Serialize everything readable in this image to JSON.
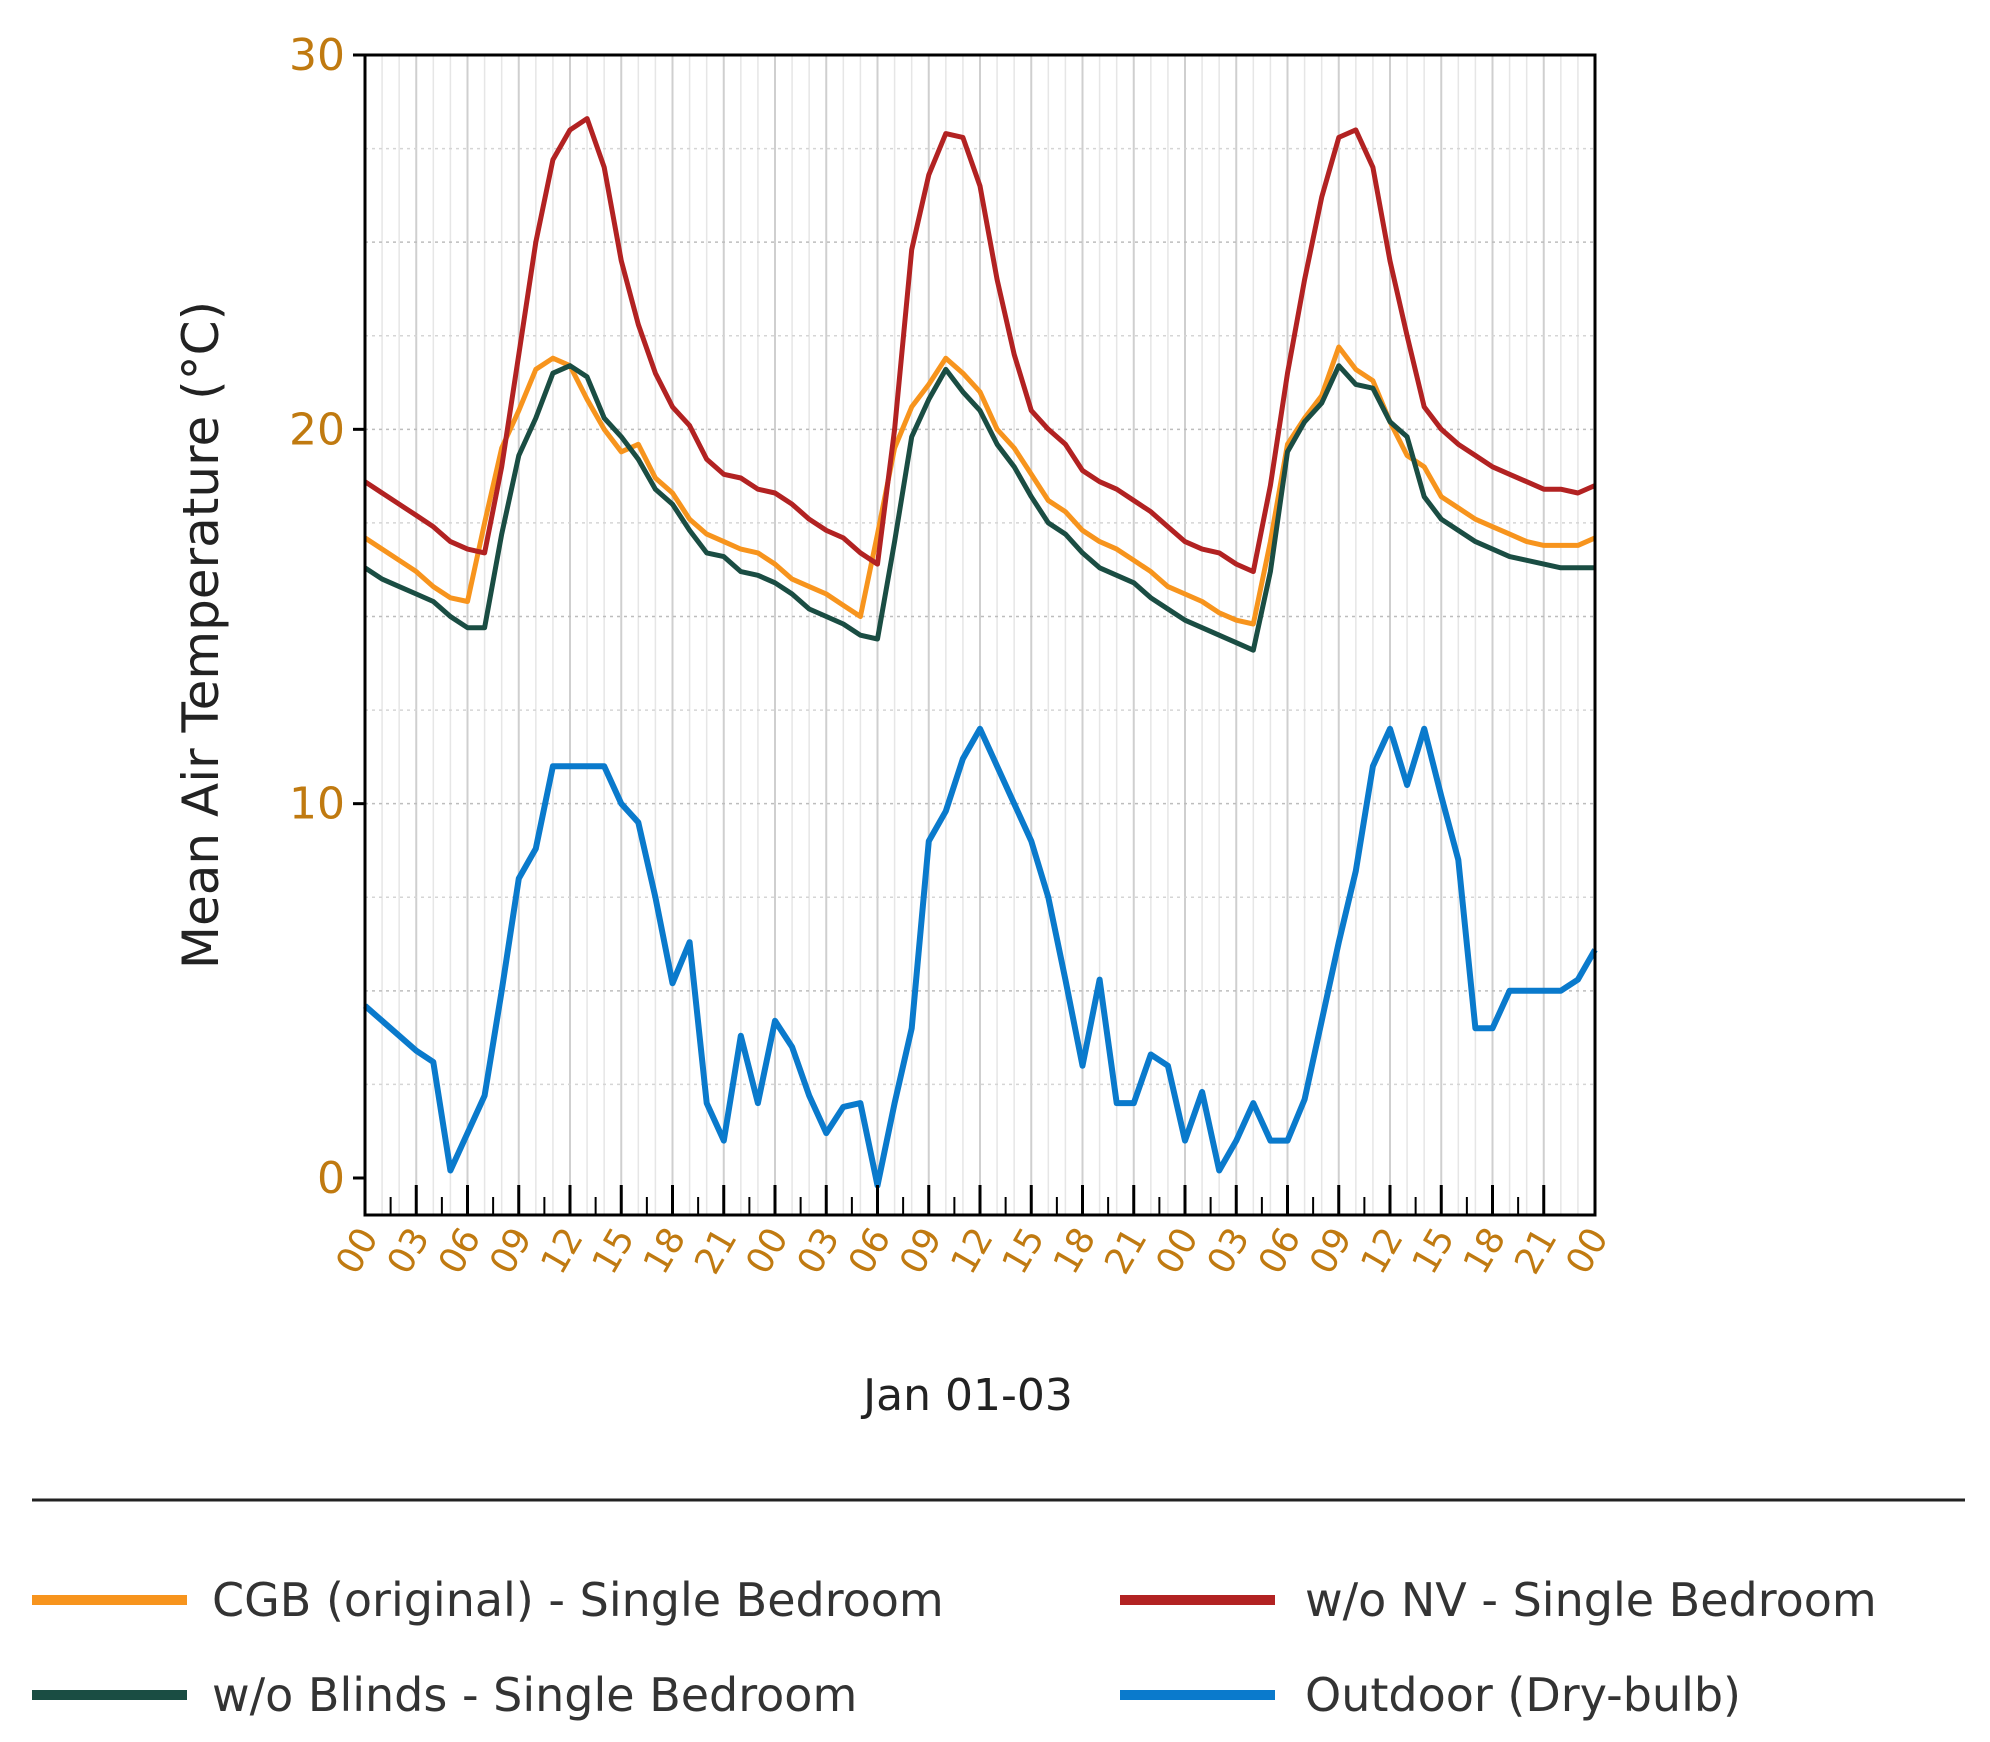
{
  "chart_data": {
    "type": "line",
    "xlabel": "Jan 01-03",
    "ylabel": "Mean Air Temperature (°C)",
    "ylim": [
      0,
      30
    ],
    "yticks": [
      "0",
      "10",
      "20",
      "30"
    ],
    "xticks": [
      "00",
      "03",
      "06",
      "09",
      "12",
      "15",
      "18",
      "21",
      "00",
      "03",
      "06",
      "09",
      "12",
      "15",
      "18",
      "21",
      "00",
      "03",
      "06",
      "09",
      "12",
      "15",
      "18",
      "21",
      "00"
    ],
    "grid": true,
    "legend_position": "bottom",
    "x_hours": [
      0,
      1,
      2,
      3,
      4,
      5,
      6,
      7,
      8,
      9,
      10,
      11,
      12,
      13,
      14,
      15,
      16,
      17,
      18,
      19,
      20,
      21,
      22,
      23,
      24,
      25,
      26,
      27,
      28,
      29,
      30,
      31,
      32,
      33,
      34,
      35,
      36,
      37,
      38,
      39,
      40,
      41,
      42,
      43,
      44,
      45,
      46,
      47,
      48,
      49,
      50,
      51,
      52,
      53,
      54,
      55,
      56,
      57,
      58,
      59,
      60,
      61,
      62,
      63,
      64,
      65,
      66,
      67,
      68,
      69,
      70,
      71,
      72
    ],
    "series": [
      {
        "name": "CGB (original) - Single Bedroom",
        "color": "#f7941d",
        "values": [
          17.1,
          16.8,
          16.5,
          16.2,
          15.8,
          15.5,
          15.4,
          17.5,
          19.5,
          20.5,
          21.6,
          21.9,
          21.7,
          20.8,
          20.0,
          19.4,
          19.6,
          18.7,
          18.3,
          17.6,
          17.2,
          17.0,
          16.8,
          16.7,
          16.4,
          16.0,
          15.8,
          15.6,
          15.3,
          15.0,
          17.2,
          19.5,
          20.6,
          21.2,
          21.9,
          21.5,
          21.0,
          20.0,
          19.5,
          18.8,
          18.1,
          17.8,
          17.3,
          17.0,
          16.8,
          16.5,
          16.2,
          15.8,
          15.6,
          15.4,
          15.1,
          14.9,
          14.8,
          17.0,
          19.6,
          20.3,
          20.9,
          22.2,
          21.6,
          21.3,
          20.2,
          19.3,
          19.0,
          18.2,
          17.9,
          17.6,
          17.4,
          17.2,
          17.0,
          16.9,
          16.9,
          16.9,
          17.1
        ],
        "lw": 5
      },
      {
        "name": "w/o NV - Single Bedroom",
        "color": "#b22222",
        "values": [
          18.6,
          18.3,
          18.0,
          17.7,
          17.4,
          17.0,
          16.8,
          16.7,
          19.0,
          22.0,
          25.0,
          27.2,
          28.0,
          28.3,
          27.0,
          24.5,
          22.8,
          21.5,
          20.6,
          20.1,
          19.2,
          18.8,
          18.7,
          18.4,
          18.3,
          18.0,
          17.6,
          17.3,
          17.1,
          16.7,
          16.4,
          20.0,
          24.8,
          26.8,
          27.9,
          27.8,
          26.5,
          24.0,
          22.0,
          20.5,
          20.0,
          19.6,
          18.9,
          18.6,
          18.4,
          18.1,
          17.8,
          17.4,
          17.0,
          16.8,
          16.7,
          16.4,
          16.2,
          18.5,
          21.5,
          24.0,
          26.2,
          27.8,
          28.0,
          27.0,
          24.5,
          22.5,
          20.6,
          20.0,
          19.6,
          19.3,
          19.0,
          18.8,
          18.6,
          18.4,
          18.4,
          18.3,
          18.5
        ],
        "lw": 5
      },
      {
        "name": "w/o Blinds - Single Bedroom",
        "color": "#1a4d43",
        "values": [
          16.3,
          16.0,
          15.8,
          15.6,
          15.4,
          15.0,
          14.7,
          14.7,
          17.2,
          19.3,
          20.3,
          21.5,
          21.7,
          21.4,
          20.3,
          19.8,
          19.2,
          18.4,
          18.0,
          17.3,
          16.7,
          16.6,
          16.2,
          16.1,
          15.9,
          15.6,
          15.2,
          15.0,
          14.8,
          14.5,
          14.4,
          17.0,
          19.8,
          20.8,
          21.6,
          21.0,
          20.5,
          19.6,
          19.0,
          18.2,
          17.5,
          17.2,
          16.7,
          16.3,
          16.1,
          15.9,
          15.5,
          15.2,
          14.9,
          14.7,
          14.5,
          14.3,
          14.1,
          16.2,
          19.4,
          20.2,
          20.7,
          21.7,
          21.2,
          21.1,
          20.2,
          19.8,
          18.2,
          17.6,
          17.3,
          17.0,
          16.8,
          16.6,
          16.5,
          16.4,
          16.3,
          16.3,
          16.3
        ],
        "lw": 5
      },
      {
        "name": "Outdoor (Dry-bulb)",
        "color": "#0a7acc",
        "values": [
          4.6,
          4.2,
          3.8,
          3.4,
          3.1,
          0.2,
          1.2,
          2.2,
          5.0,
          8.0,
          8.8,
          11.0,
          11.0,
          11.0,
          11.0,
          10.0,
          9.5,
          7.5,
          5.2,
          6.3,
          2.0,
          1.0,
          3.8,
          2.0,
          4.2,
          3.5,
          2.2,
          1.2,
          1.9,
          2.0,
          -0.2,
          2.0,
          4.0,
          9.0,
          9.8,
          11.2,
          12.0,
          11.0,
          10.0,
          9.0,
          7.5,
          5.3,
          3.0,
          5.3,
          2.0,
          2.0,
          3.3,
          3.0,
          1.0,
          2.3,
          0.2,
          1.0,
          2.0,
          1.0,
          1.0,
          2.1,
          4.2,
          6.3,
          8.2,
          11.0,
          12.0,
          10.5,
          12.0,
          10.2,
          8.5,
          4.0,
          4.0,
          5.0,
          5.0,
          5.0,
          5.0,
          5.3,
          6.1
        ],
        "lw": 6
      }
    ]
  }
}
